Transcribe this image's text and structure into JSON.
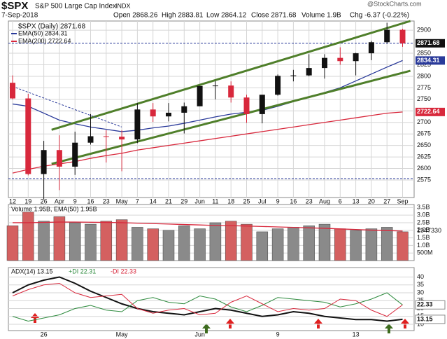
{
  "header": {
    "symbol": "$SPX",
    "name": "S&P 500 Large Cap Index",
    "exchange": "INDX",
    "date": "7-Sep-2018",
    "open": "Open 2868.26",
    "high": "High 2883.81",
    "low": "Low 2864.12",
    "close": "Close 2871.68",
    "volume": "Volume 1.9B",
    "change": "Chg -6.37 (-0.22%)",
    "source": "@StockCharts.com"
  },
  "chart_data": [
    {
      "type": "candlestick",
      "categories": [
        "12",
        "19",
        "26",
        "Apr",
        "9",
        "16",
        "23",
        "May",
        "7",
        "14",
        "21",
        "29",
        "Jun",
        "11",
        "18",
        "25",
        "Jul",
        "9",
        "16",
        "23",
        "Aug",
        "6",
        "13",
        "20",
        "27",
        "Sep"
      ],
      "open": [
        2786,
        2752,
        2588,
        2640,
        2604,
        2656,
        2670,
        2669,
        2663,
        2728,
        2713,
        2721,
        2735,
        2779,
        2780,
        2754,
        2718,
        2760,
        2801,
        2802,
        2818,
        2840,
        2833,
        2850,
        2874,
        2901
      ],
      "high": [
        2802,
        2762,
        2660,
        2672,
        2680,
        2718,
        2683,
        2683,
        2742,
        2742,
        2742,
        2743,
        2779,
        2790,
        2789,
        2760,
        2760,
        2804,
        2814,
        2848,
        2848,
        2863,
        2851,
        2877,
        2916,
        2903
      ],
      "low": [
        2750,
        2585,
        2533,
        2553,
        2586,
        2652,
        2613,
        2594,
        2655,
        2701,
        2702,
        2676,
        2736,
        2750,
        2743,
        2699,
        2698,
        2758,
        2789,
        2800,
        2795,
        2825,
        2802,
        2835,
        2872,
        2864
      ],
      "close": [
        2752,
        2588,
        2640,
        2604,
        2656,
        2670,
        2669,
        2663,
        2728,
        2713,
        2721,
        2735,
        2779,
        2780,
        2754,
        2718,
        2760,
        2801,
        2802,
        2818,
        2840,
        2833,
        2850,
        2874,
        2901,
        2871.68
      ],
      "price_name": "$SPX (Daily) 2871.68",
      "price_label": 2871.68,
      "series": [
        {
          "name": "EMA(50) 2834.31",
          "color": "#2a3a9a",
          "label": 2834.31,
          "values": [
            2740,
            2735,
            2720,
            2705,
            2697,
            2690,
            2685,
            2680,
            2683,
            2688,
            2692,
            2698,
            2705,
            2712,
            2718,
            2722,
            2726,
            2735,
            2745,
            2755,
            2765,
            2775,
            2790,
            2805,
            2820,
            2834.31
          ]
        },
        {
          "name": "EMA(200) 2722.64",
          "color": "#d8283c",
          "label": 2722.64,
          "values": [
            2590,
            2598,
            2605,
            2610,
            2615,
            2622,
            2628,
            2633,
            2640,
            2645,
            2650,
            2655,
            2660,
            2665,
            2670,
            2675,
            2680,
            2685,
            2690,
            2695,
            2700,
            2705,
            2710,
            2715,
            2720,
            2722.64
          ]
        }
      ],
      "trendlines": [
        {
          "x": [
            2.5,
            25.5
          ],
          "y": [
            2684,
            2920
          ]
        },
        {
          "x": [
            2.5,
            25.5
          ],
          "y": [
            2610,
            2812
          ]
        }
      ],
      "dashed_trend": {
        "x": [
          0,
          7
        ],
        "y": [
          2778,
          2690
        ]
      },
      "hlines": [
        2871.68,
        2578
      ],
      "ylim": [
        2537,
        2920
      ],
      "yticks": [
        2575,
        2600,
        2625,
        2650,
        2675,
        2700,
        2725,
        2750,
        2775,
        2800,
        2825,
        2850,
        2900
      ],
      "grid": true
    },
    {
      "type": "volume",
      "legend": "Volume 1.95B, EMA(50) 1.95B",
      "right_label": "1947330",
      "values": [
        2300000000,
        3200000000,
        2600000000,
        2900000000,
        2500000000,
        2400000000,
        2600000000,
        2700000000,
        2200000000,
        2100000000,
        2000000000,
        2300000000,
        2100000000,
        2500000000,
        2600000000,
        2400000000,
        1900000000,
        2100000000,
        2200000000,
        2300000000,
        2400000000,
        2100000000,
        2000000000,
        2100000000,
        2200000000,
        1900000000
      ],
      "ema": [
        2500000000,
        2500000000,
        2520000000,
        2540000000,
        2540000000,
        2530000000,
        2520000000,
        2500000000,
        2470000000,
        2440000000,
        2410000000,
        2380000000,
        2350000000,
        2320000000,
        2300000000,
        2280000000,
        2250000000,
        2220000000,
        2190000000,
        2160000000,
        2130000000,
        2090000000,
        2050000000,
        2010000000,
        1980000000,
        1950000000
      ],
      "ylim": [
        0,
        3700000000
      ],
      "yticks": [
        {
          "value": 500000000,
          "label": "500M"
        },
        {
          "value": 1000000000,
          "label": "1.0B"
        },
        {
          "value": 1500000000,
          "label": "1.5B"
        },
        {
          "value": 2000000000,
          "label": "2.0B"
        },
        {
          "value": 2500000000,
          "label": "2.5B"
        },
        {
          "value": 3000000000,
          "label": "3.0B"
        },
        {
          "value": 3500000000,
          "label": "3.5B"
        }
      ],
      "grid": true
    },
    {
      "type": "line",
      "ylim": [
        6,
        46
      ],
      "yticks": [
        10,
        15,
        20,
        25,
        30,
        35,
        40
      ],
      "grid": true,
      "series": [
        {
          "name": "ADX(14) 13.15",
          "color": "#111111",
          "label": 13.15,
          "values": [
            30,
            35,
            38,
            40,
            36,
            31,
            27,
            23,
            20,
            18,
            17,
            16,
            18,
            20,
            19,
            17,
            15,
            16,
            18,
            17,
            15,
            14,
            13,
            13,
            12,
            13.15
          ]
        },
        {
          "name": "+DI 22.31",
          "color": "#2e8b3e",
          "label": 22.31,
          "values": [
            15,
            12,
            14,
            16,
            20,
            22,
            19,
            18,
            25,
            27,
            24,
            23,
            28,
            26,
            21,
            18,
            22,
            27,
            26,
            25,
            24,
            21,
            23,
            26,
            30,
            22.31
          ]
        },
        {
          "name": "-DI 22.33",
          "color": "#d8283c",
          "label": 22.33,
          "values": [
            28,
            32,
            35,
            36,
            30,
            27,
            28,
            29,
            20,
            17,
            19,
            20,
            16,
            17,
            24,
            28,
            23,
            18,
            20,
            19,
            20,
            26,
            25,
            19,
            15,
            22.33
          ]
        }
      ]
    }
  ]
}
